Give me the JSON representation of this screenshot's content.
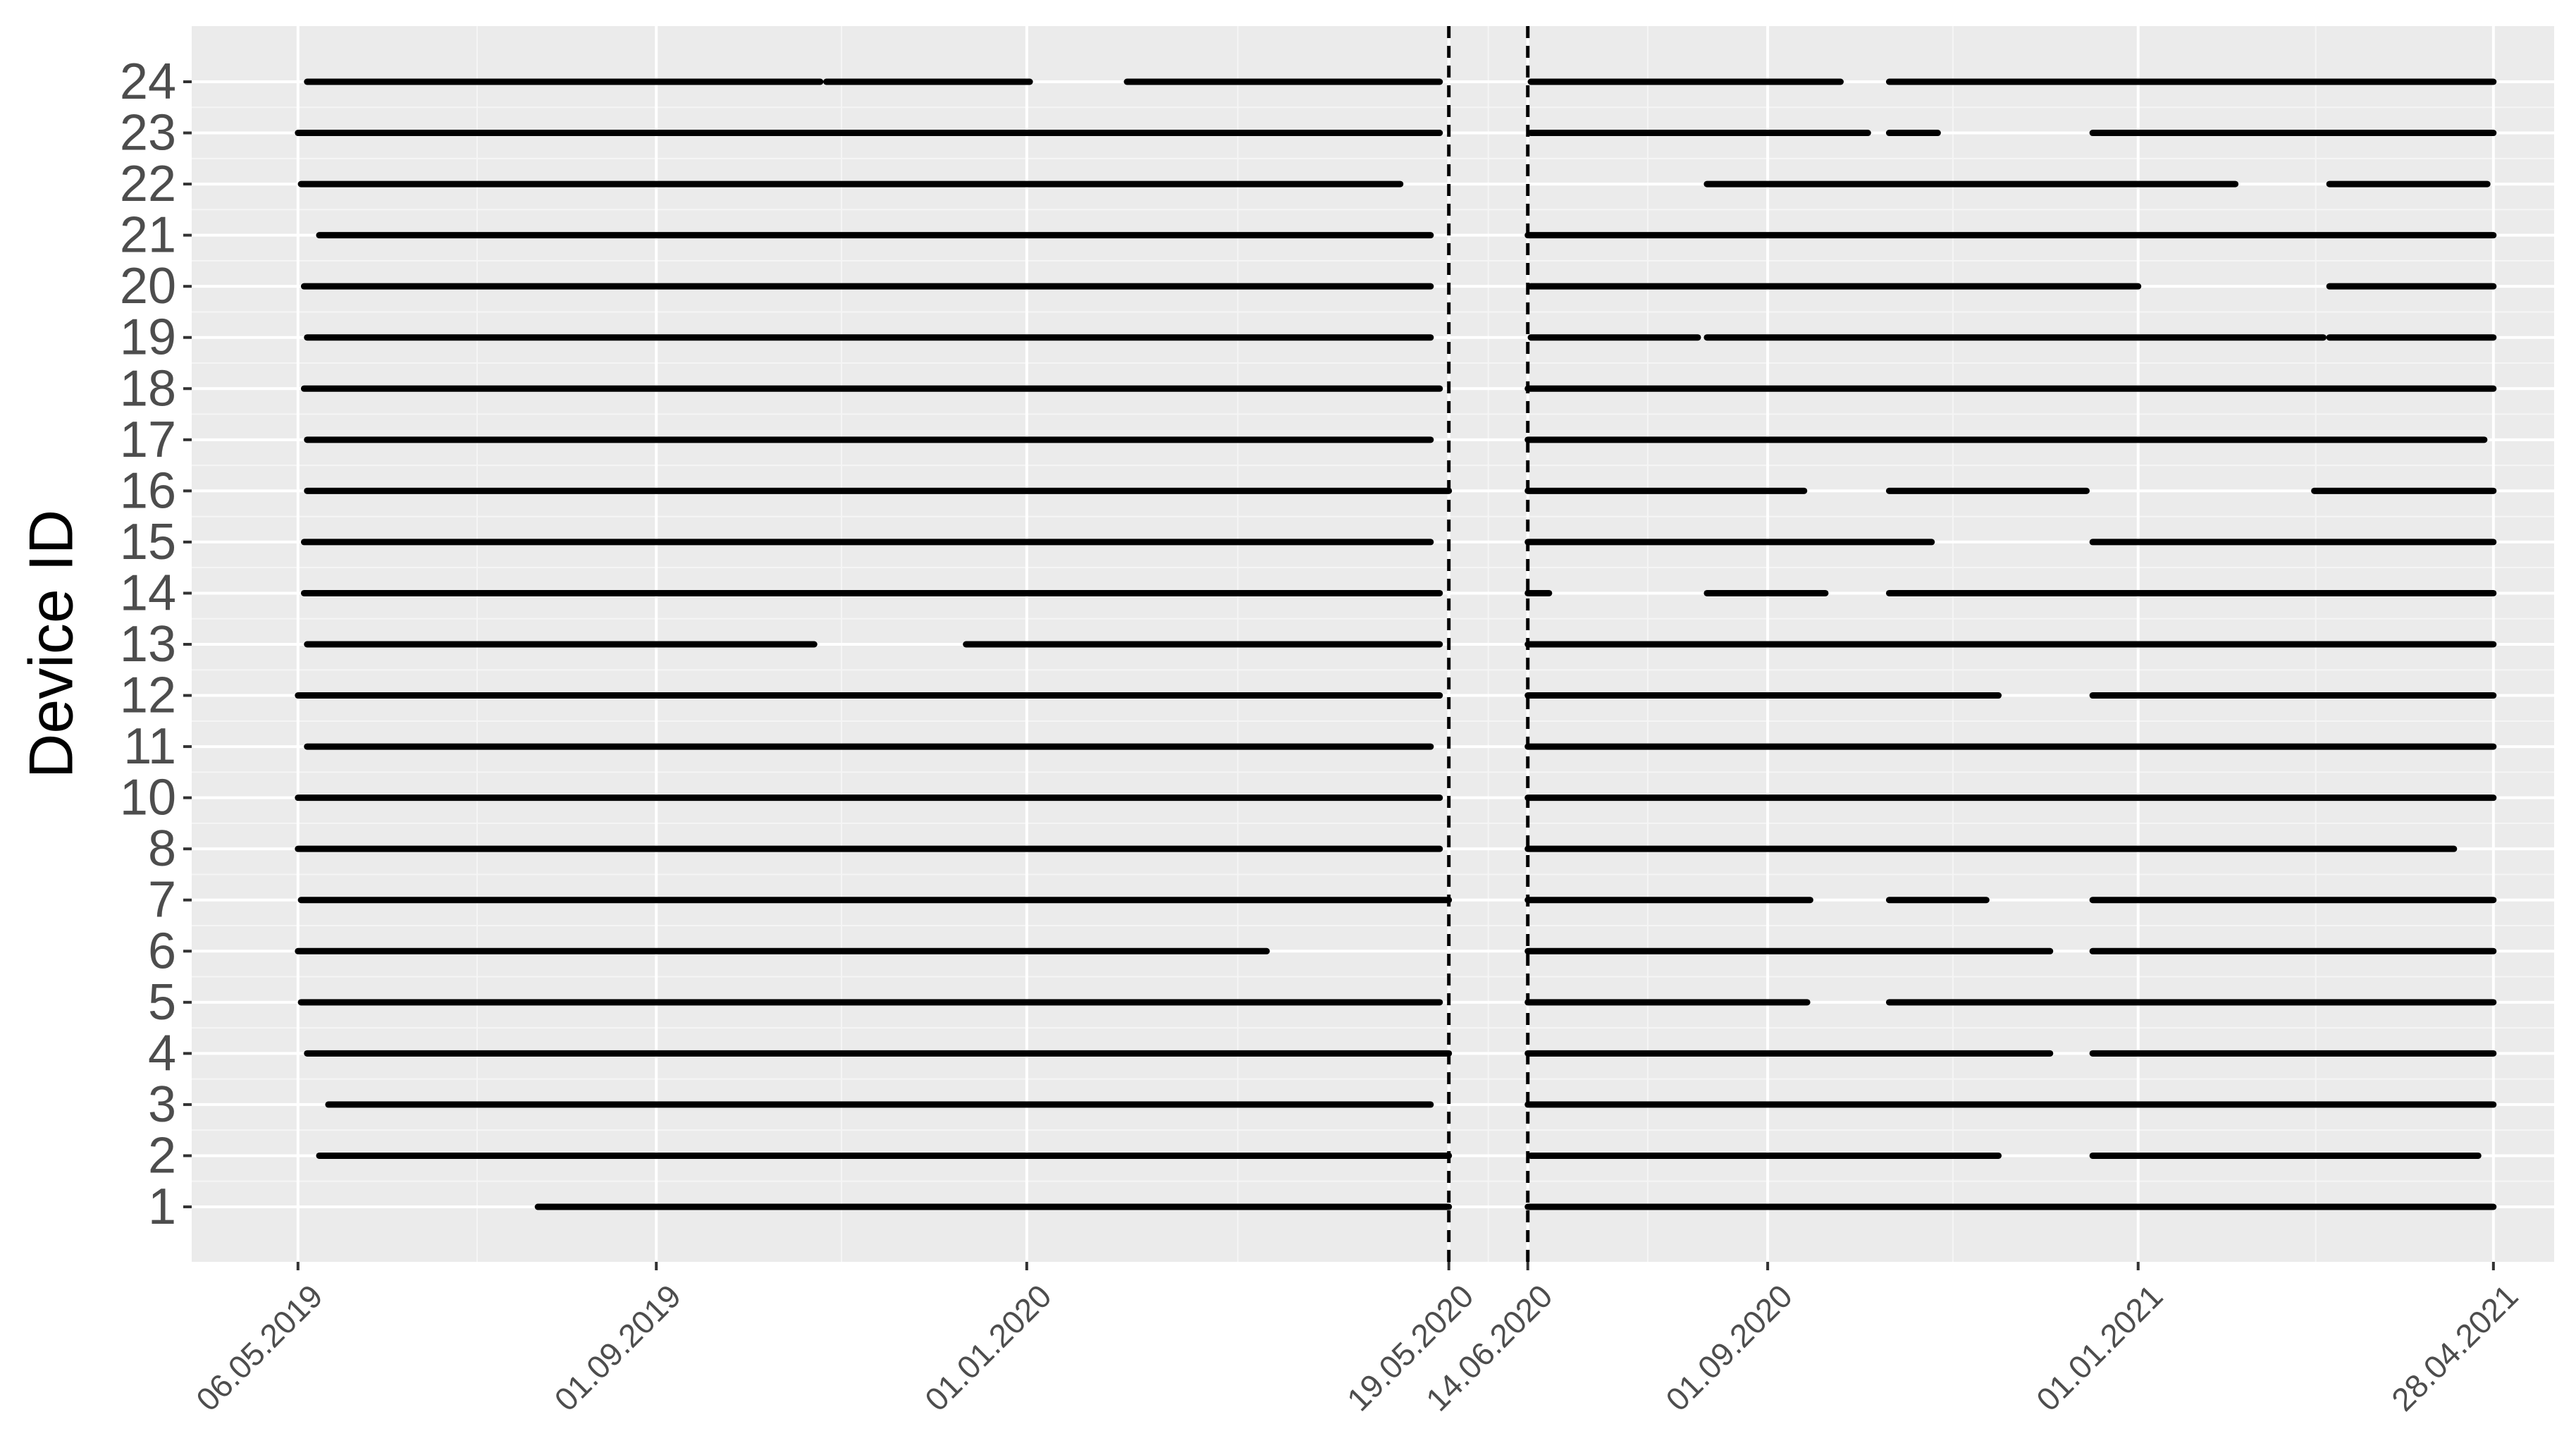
{
  "chart_data": {
    "type": "segment",
    "ylabel": "Device ID",
    "xlabel": "",
    "y_categories": [
      "1",
      "2",
      "3",
      "4",
      "5",
      "6",
      "7",
      "8",
      "10",
      "11",
      "12",
      "13",
      "14",
      "15",
      "16",
      "17",
      "18",
      "19",
      "20",
      "21",
      "22",
      "23",
      "24"
    ],
    "x_ticks": [
      "06.05.2019",
      "01.09.2019",
      "01.01.2020",
      "19.05.2020",
      "14.06.2020",
      "01.09.2020",
      "01.01.2021",
      "28.04.2021"
    ],
    "reference_lines": [
      "19.05.2020",
      "14.06.2020"
    ],
    "xlim": [
      "2019-04-01",
      "2021-05-18"
    ],
    "grid": true,
    "segments": {
      "24": [
        [
          "2019-05-09",
          "2019-10-25"
        ],
        [
          "2019-10-27",
          "2020-01-02"
        ],
        [
          "2020-02-03",
          "2020-05-16"
        ],
        [
          "2020-06-15",
          "2020-09-25"
        ],
        [
          "2020-10-11",
          "2021-04-28"
        ]
      ],
      "23": [
        [
          "2019-05-06",
          "2020-05-16"
        ],
        [
          "2020-06-15",
          "2020-10-04"
        ],
        [
          "2020-10-11",
          "2020-10-27"
        ],
        [
          "2020-12-17",
          "2021-04-28"
        ]
      ],
      "22": [
        [
          "2019-05-07",
          "2020-05-03"
        ],
        [
          "2020-08-12",
          "2021-02-02"
        ],
        [
          "2021-03-05",
          "2021-04-26"
        ]
      ],
      "21": [
        [
          "2019-05-13",
          "2020-05-13"
        ],
        [
          "2020-06-14",
          "2021-04-28"
        ]
      ],
      "20": [
        [
          "2019-05-08",
          "2020-05-13"
        ],
        [
          "2020-06-15",
          "2021-01-01"
        ],
        [
          "2021-03-05",
          "2021-04-28"
        ]
      ],
      "19": [
        [
          "2019-05-09",
          "2020-05-13"
        ],
        [
          "2020-06-15",
          "2020-08-09"
        ],
        [
          "2020-08-12",
          "2021-03-03"
        ],
        [
          "2021-03-05",
          "2021-04-28"
        ]
      ],
      "18": [
        [
          "2019-05-08",
          "2020-05-16"
        ],
        [
          "2020-06-14",
          "2021-04-28"
        ]
      ],
      "17": [
        [
          "2019-05-09",
          "2020-05-13"
        ],
        [
          "2020-06-14",
          "2021-04-25"
        ]
      ],
      "16": [
        [
          "2019-05-09",
          "2020-05-19"
        ],
        [
          "2020-06-14",
          "2020-09-13"
        ],
        [
          "2020-10-11",
          "2020-12-15"
        ],
        [
          "2021-02-28",
          "2021-04-28"
        ]
      ],
      "15": [
        [
          "2019-05-08",
          "2020-05-13"
        ],
        [
          "2020-06-14",
          "2020-10-25"
        ],
        [
          "2020-12-17",
          "2021-04-28"
        ]
      ],
      "14": [
        [
          "2019-05-08",
          "2020-05-16"
        ],
        [
          "2020-06-14",
          "2020-06-21"
        ],
        [
          "2020-08-12",
          "2020-09-20"
        ],
        [
          "2020-10-11",
          "2021-04-28"
        ]
      ],
      "13": [
        [
          "2019-05-09",
          "2019-10-23"
        ],
        [
          "2019-12-12",
          "2020-05-16"
        ],
        [
          "2020-06-14",
          "2021-04-28"
        ]
      ],
      "12": [
        [
          "2019-05-06",
          "2020-05-16"
        ],
        [
          "2020-06-14",
          "2020-11-16"
        ],
        [
          "2020-12-17",
          "2021-04-28"
        ]
      ],
      "11": [
        [
          "2019-05-09",
          "2020-05-13"
        ],
        [
          "2020-06-14",
          "2021-04-28"
        ]
      ],
      "10": [
        [
          "2019-05-06",
          "2020-05-16"
        ],
        [
          "2020-06-14",
          "2021-04-28"
        ]
      ],
      "8": [
        [
          "2019-05-06",
          "2020-05-16"
        ],
        [
          "2020-06-14",
          "2021-04-15"
        ]
      ],
      "7": [
        [
          "2019-05-07",
          "2020-05-19"
        ],
        [
          "2020-06-14",
          "2020-09-15"
        ],
        [
          "2020-10-11",
          "2020-11-12"
        ],
        [
          "2020-12-17",
          "2021-04-28"
        ]
      ],
      "6": [
        [
          "2019-05-06",
          "2020-03-20"
        ],
        [
          "2020-06-14",
          "2020-12-03"
        ],
        [
          "2020-12-17",
          "2021-04-28"
        ]
      ],
      "5": [
        [
          "2019-05-07",
          "2020-05-16"
        ],
        [
          "2020-06-14",
          "2020-09-14"
        ],
        [
          "2020-10-11",
          "2021-04-28"
        ]
      ],
      "4": [
        [
          "2019-05-09",
          "2020-05-19"
        ],
        [
          "2020-06-14",
          "2020-12-03"
        ],
        [
          "2020-12-17",
          "2021-04-28"
        ]
      ],
      "3": [
        [
          "2019-05-16",
          "2020-05-13"
        ],
        [
          "2020-06-14",
          "2021-04-28"
        ]
      ],
      "2": [
        [
          "2019-05-13",
          "2020-05-19"
        ],
        [
          "2020-06-15",
          "2020-11-16"
        ],
        [
          "2020-12-17",
          "2021-04-23"
        ]
      ],
      "1": [
        [
          "2019-07-24",
          "2020-05-19"
        ],
        [
          "2020-06-14",
          "2021-04-28"
        ]
      ]
    }
  }
}
